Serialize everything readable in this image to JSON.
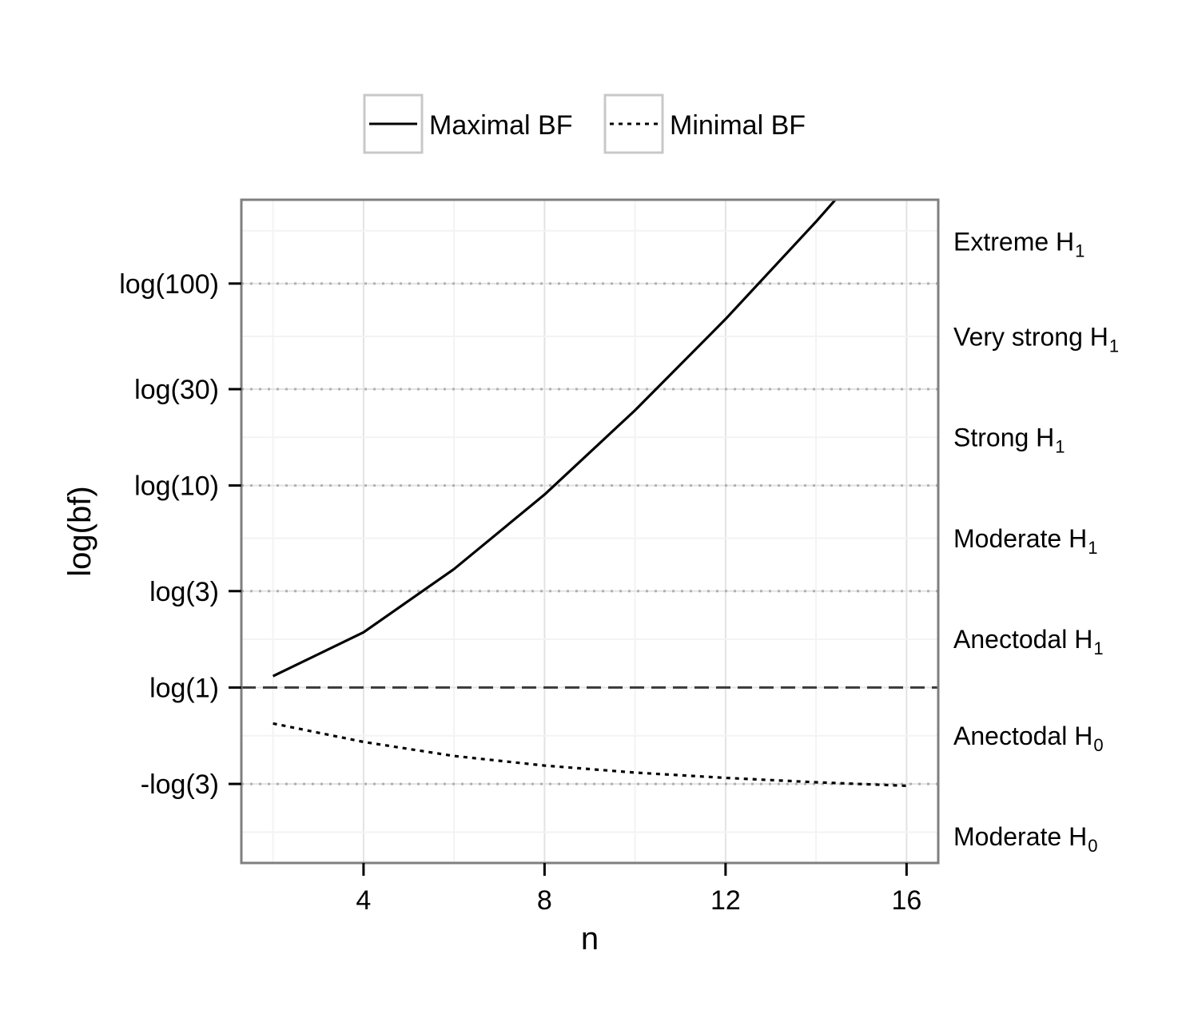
{
  "chart_data": {
    "type": "line",
    "xlabel": "n",
    "ylabel": "log(bf)",
    "xlim": [
      1.3,
      16.7
    ],
    "ylim": [
      -2.0,
      5.56
    ],
    "grid": true,
    "legend_placement": "top",
    "x_ticks": [
      {
        "value": 4,
        "label": "4"
      },
      {
        "value": 8,
        "label": "8"
      },
      {
        "value": 12,
        "label": "12"
      },
      {
        "value": 16,
        "label": "16"
      }
    ],
    "y_ticks": [
      {
        "value": 4.605,
        "label": "log(100)"
      },
      {
        "value": 3.401,
        "label": "log(30)"
      },
      {
        "value": 2.303,
        "label": "log(10)"
      },
      {
        "value": 1.099,
        "label": "log(3)"
      },
      {
        "value": 0,
        "label": "log(1)"
      },
      {
        "value": -1.099,
        "label": "-log(3)"
      }
    ],
    "reference_lines": [
      {
        "value": 4.605,
        "style": "dotted"
      },
      {
        "value": 3.401,
        "style": "dotted"
      },
      {
        "value": 2.303,
        "style": "dotted"
      },
      {
        "value": 1.099,
        "style": "dotted"
      },
      {
        "value": 0,
        "style": "dashed"
      },
      {
        "value": -1.099,
        "style": "dotted"
      }
    ],
    "evidence_bands": [
      {
        "main": "Extreme H",
        "sub": "1",
        "y": 5.08
      },
      {
        "main": "Very strong H",
        "sub": "1",
        "y": 4.0
      },
      {
        "main": "Strong H",
        "sub": "1",
        "y": 2.85
      },
      {
        "main": "Moderate H",
        "sub": "1",
        "y": 1.7
      },
      {
        "main": "Anectodal H",
        "sub": "1",
        "y": 0.55
      },
      {
        "main": "Anectodal H",
        "sub": "0",
        "y": -0.55
      },
      {
        "main": "Moderate H",
        "sub": "0",
        "y": -1.7
      }
    ],
    "series": [
      {
        "name": "Maximal BF",
        "style": "solid",
        "x": [
          2,
          4,
          6,
          8,
          10,
          12,
          14,
          16
        ],
        "y": [
          0.13,
          0.63,
          1.35,
          2.2,
          3.16,
          4.2,
          5.31,
          6.48
        ]
      },
      {
        "name": "Minimal BF",
        "style": "dotted",
        "x": [
          2,
          4,
          6,
          8,
          10,
          12,
          14,
          16
        ],
        "y": [
          -0.41,
          -0.62,
          -0.78,
          -0.89,
          -0.97,
          -1.03,
          -1.08,
          -1.12
        ]
      }
    ]
  },
  "colors": {
    "line": "#000000",
    "panel_border": "#7f7f7f",
    "grid_major": "#e3e3e3",
    "grid_minor": "#f3f3f3",
    "ref_dotted": "#b0b0b0",
    "ref_dashed": "#3a3a3a",
    "legend_key_border": "#c8c8c8"
  }
}
